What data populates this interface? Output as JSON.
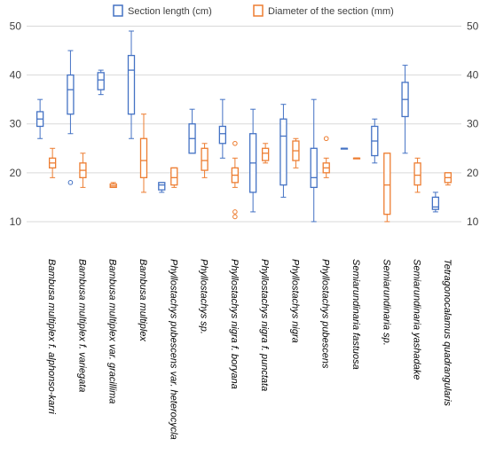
{
  "chart_data": {
    "type": "boxplot",
    "legend_position": "top",
    "categories": [
      "Bambusa multiplex f. alphonso-karri",
      "Bambusa multiplex f. variegata",
      "Bambusa multiplex var. gracillima",
      "Bambusa multiplex",
      "Phyllostachys pubescens var. heterocycla",
      "Phyllostachys sp.",
      "Phyllostachys nigra f. boryana",
      "Phyllostachys nigra f. punctata",
      "Phyllostachys nigra",
      "Phyllostachys pubescens",
      "Semiarundinaria fastuosa",
      "Semiarundinaria sp.",
      "Semiarundinaria yashadake",
      "Tetragonocalamus quadrangularis"
    ],
    "y_ticks": [
      10,
      20,
      30,
      40,
      50
    ],
    "ylim": [
      5,
      51
    ],
    "secondary_y_ticks": [
      10,
      20,
      30,
      40,
      50
    ],
    "series": [
      {
        "name": "Section length (cm)",
        "color": "#4472C4",
        "boxes": [
          {
            "min": 27,
            "q1": 29.5,
            "median": 31,
            "q3": 32.5,
            "max": 35,
            "outliers": []
          },
          {
            "min": 28,
            "q1": 32,
            "median": 37,
            "q3": 40,
            "max": 45,
            "outliers": [
              18
            ]
          },
          {
            "min": 36,
            "q1": 37,
            "median": 39,
            "q3": 40.5,
            "max": 41,
            "outliers": []
          },
          {
            "min": 27,
            "q1": 32,
            "median": 41,
            "q3": 44,
            "max": 49,
            "outliers": []
          },
          {
            "min": 16,
            "q1": 16.5,
            "median": 17.5,
            "q3": 18,
            "max": 18,
            "outliers": []
          },
          {
            "min": 24,
            "q1": 24,
            "median": 27,
            "q3": 30,
            "max": 33,
            "outliers": []
          },
          {
            "min": 23,
            "q1": 26,
            "median": 28,
            "q3": 29.5,
            "max": 35,
            "outliers": []
          },
          {
            "min": 12,
            "q1": 16,
            "median": 22,
            "q3": 28,
            "max": 33,
            "outliers": []
          },
          {
            "min": 15,
            "q1": 17.5,
            "median": 27.5,
            "q3": 31,
            "max": 34,
            "outliers": []
          },
          {
            "min": 10,
            "q1": 17,
            "median": 19,
            "q3": 25,
            "max": 35,
            "outliers": []
          },
          {
            "min": 25,
            "q1": 25,
            "median": 25,
            "q3": 25,
            "max": 25,
            "outliers": []
          },
          {
            "min": 22,
            "q1": 23.5,
            "median": 26.5,
            "q3": 29.5,
            "max": 31,
            "outliers": []
          },
          {
            "min": 24,
            "q1": 31.5,
            "median": 35,
            "q3": 38.5,
            "max": 42,
            "outliers": []
          },
          {
            "min": 12,
            "q1": 12.5,
            "median": 13,
            "q3": 15,
            "max": 16,
            "outliers": []
          }
        ]
      },
      {
        "name": "Diameter of the section (mm)",
        "color": "#ED7D31",
        "boxes": [
          {
            "min": 19,
            "q1": 21,
            "median": 22,
            "q3": 23,
            "max": 25,
            "outliers": []
          },
          {
            "min": 17,
            "q1": 19,
            "median": 20.5,
            "q3": 22,
            "max": 24,
            "outliers": []
          },
          {
            "min": 17,
            "q1": 17,
            "median": 17.3,
            "q3": 17.7,
            "max": 18,
            "outliers": []
          },
          {
            "min": 16,
            "q1": 19,
            "median": 22.5,
            "q3": 27,
            "max": 32,
            "outliers": []
          },
          {
            "min": 17,
            "q1": 17.5,
            "median": 19,
            "q3": 21,
            "max": 21,
            "outliers": []
          },
          {
            "min": 19,
            "q1": 20.5,
            "median": 22.5,
            "q3": 25,
            "max": 26,
            "outliers": []
          },
          {
            "min": 17,
            "q1": 18,
            "median": 19.5,
            "q3": 21,
            "max": 23,
            "outliers": [
              11,
              12,
              26
            ]
          },
          {
            "min": 22,
            "q1": 22.5,
            "median": 24,
            "q3": 25,
            "max": 26,
            "outliers": []
          },
          {
            "min": 21,
            "q1": 22.5,
            "median": 24.5,
            "q3": 26.5,
            "max": 27,
            "outliers": []
          },
          {
            "min": 19,
            "q1": 20,
            "median": 21,
            "q3": 22,
            "max": 23,
            "outliers": [
              27
            ]
          },
          {
            "min": 23,
            "q1": 23,
            "median": 23,
            "q3": 23,
            "max": 23,
            "outliers": []
          },
          {
            "min": 10,
            "q1": 11.5,
            "median": 17.5,
            "q3": 24,
            "max": 24,
            "outliers": []
          },
          {
            "min": 16,
            "q1": 17.5,
            "median": 19.5,
            "q3": 22,
            "max": 23,
            "outliers": []
          },
          {
            "min": 17.5,
            "q1": 18,
            "median": 19,
            "q3": 20,
            "max": 20,
            "outliers": []
          }
        ]
      }
    ]
  }
}
